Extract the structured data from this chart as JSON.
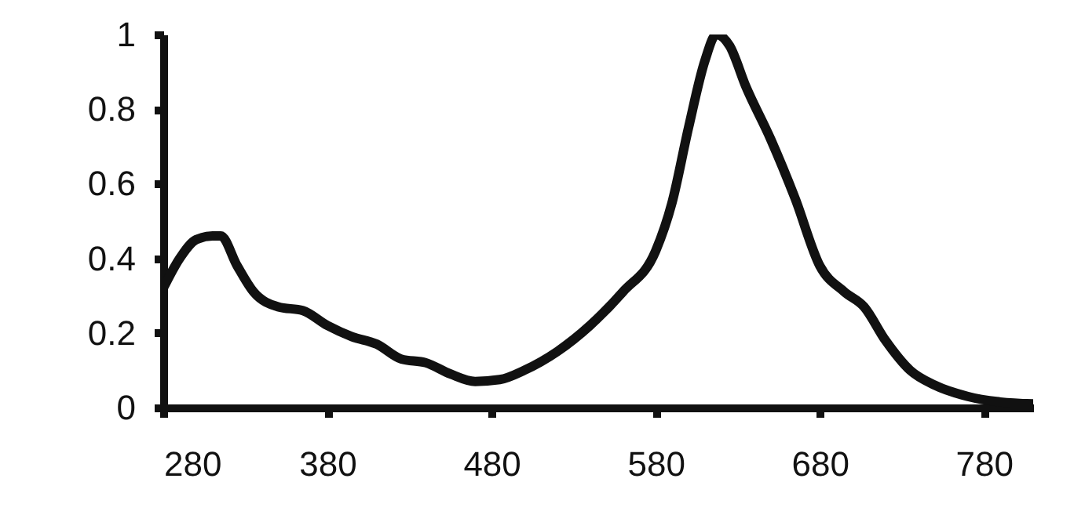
{
  "chart_data": {
    "type": "line",
    "x": [
      280,
      290,
      300,
      310,
      315,
      325,
      335,
      350,
      365,
      380,
      395,
      410,
      425,
      440,
      455,
      470,
      485,
      500,
      520,
      540,
      560,
      580,
      590,
      600,
      610,
      617,
      625,
      635,
      650,
      665,
      680,
      695,
      707,
      720,
      735,
      750,
      770,
      790,
      810
    ],
    "series": [
      {
        "color": "#111111",
        "values": [
          0.32,
          0.4,
          0.45,
          0.46,
          0.46,
          0.38,
          0.31,
          0.27,
          0.26,
          0.22,
          0.19,
          0.17,
          0.13,
          0.12,
          0.09,
          0.07,
          0.075,
          0.1,
          0.15,
          0.22,
          0.31,
          0.42,
          0.55,
          0.75,
          0.93,
          1.0,
          0.97,
          0.86,
          0.72,
          0.56,
          0.38,
          0.31,
          0.27,
          0.18,
          0.1,
          0.06,
          0.03,
          0.015,
          0.01
        ]
      }
    ],
    "xlim": [
      280,
      810
    ],
    "xticks": [
      280,
      380,
      480,
      580,
      680,
      780
    ],
    "ylim": [
      0,
      1
    ],
    "yticks": [
      0,
      0.2,
      0.4,
      0.6,
      0.8,
      1
    ],
    "grid": false,
    "legend": false,
    "marker": "none",
    "line_style": "solid"
  }
}
